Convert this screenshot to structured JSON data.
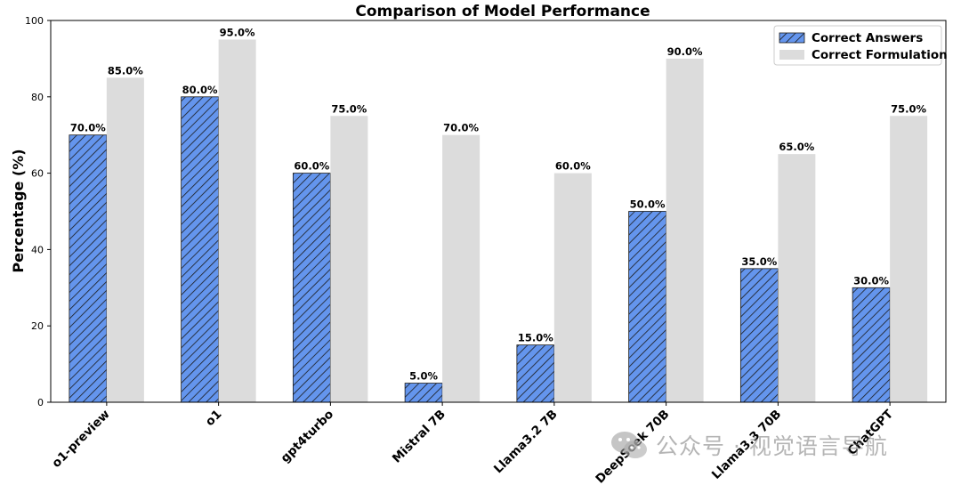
{
  "chart_data": {
    "type": "bar",
    "title": "Comparison of Model Performance",
    "xlabel": "",
    "ylabel": "Percentage (%)",
    "ylim": [
      0,
      100
    ],
    "yticks": [
      0,
      20,
      40,
      60,
      80,
      100
    ],
    "grid": false,
    "legend_position": "top-right",
    "categories": [
      "o1-preview",
      "o1",
      "gpt4turbo",
      "Mistral 7B",
      "Llama3.2 7B",
      "DeepSeek 70B",
      "Llama3.3 70B",
      "ChatGPT"
    ],
    "series": [
      {
        "name": "Correct Answers",
        "values": [
          70,
          80,
          60,
          5,
          15,
          50,
          35,
          30
        ],
        "labels": [
          "70.0%",
          "80.0%",
          "60.0%",
          "5.0%",
          "15.0%",
          "50.0%",
          "35.0%",
          "30.0%"
        ],
        "color": "#6495ed",
        "hatch": true
      },
      {
        "name": "Correct Formulation",
        "values": [
          85,
          95,
          75,
          70,
          60,
          90,
          65,
          75
        ],
        "labels": [
          "85.0%",
          "95.0%",
          "75.0%",
          "70.0%",
          "60.0%",
          "90.0%",
          "65.0%",
          "75.0%"
        ],
        "color": "#dcdcdc",
        "hatch": false
      }
    ]
  },
  "watermark": {
    "text": "公众号 · 视觉语言导航",
    "icon": "wechat-icon"
  }
}
